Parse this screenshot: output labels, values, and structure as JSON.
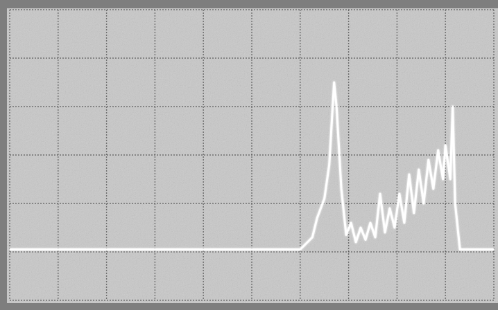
{
  "chart_data": {
    "type": "line",
    "title": "",
    "xlabel": "",
    "ylabel": "",
    "grid": true,
    "grid_divisions": {
      "x": 10,
      "y": 6
    },
    "xlim": [
      0,
      10
    ],
    "ylim": [
      0,
      6
    ],
    "trace_color": "#ffffff",
    "screen_color": "#c9c9c9",
    "grid_color": "#4a4a4a",
    "series": [
      {
        "x": [
          0,
          6.0,
          6.25,
          6.35,
          6.5,
          6.6,
          6.7,
          6.75,
          6.85,
          6.95,
          7.05,
          7.15,
          7.25,
          7.35,
          7.45,
          7.55,
          7.65,
          7.75,
          7.85,
          7.95,
          8.05,
          8.15,
          8.25,
          8.35,
          8.45,
          8.55,
          8.65,
          8.75,
          8.85,
          8.95,
          9.0,
          9.1,
          9.15,
          9.2,
          9.3,
          10
        ],
        "y": [
          1.05,
          1.05,
          1.3,
          1.7,
          2.1,
          2.8,
          4.5,
          4.0,
          2.3,
          1.35,
          1.6,
          1.2,
          1.5,
          1.25,
          1.6,
          1.3,
          2.2,
          1.4,
          1.9,
          1.5,
          2.2,
          1.6,
          2.6,
          1.8,
          2.7,
          2.0,
          2.9,
          2.3,
          3.1,
          2.5,
          3.2,
          2.5,
          4.0,
          2.0,
          1.05,
          1.05
        ]
      }
    ]
  }
}
